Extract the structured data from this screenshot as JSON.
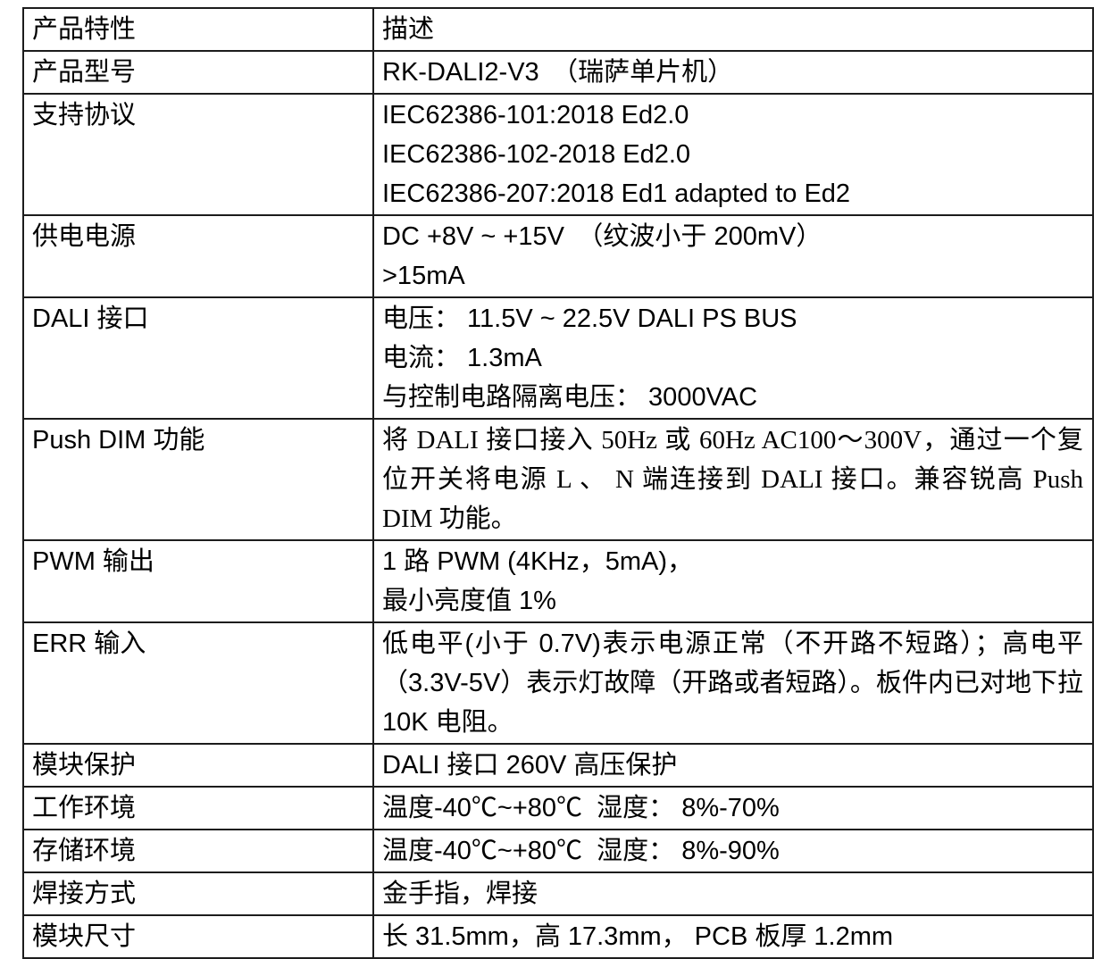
{
  "table": {
    "header": {
      "feature_label": "产品特性",
      "description_label": "描述"
    },
    "rows": [
      {
        "feature": "产品型号",
        "lines": [
          "RK-DALI2-V3　（瑞萨单片机）"
        ]
      },
      {
        "feature": "支持协议",
        "lines": [
          "IEC62386-101:2018 Ed2.0",
          "IEC62386-102-2018 Ed2.0",
          "IEC62386-207:2018 Ed1 adapted to Ed2"
        ]
      },
      {
        "feature": "供电电源",
        "lines": [
          "DC +8V ~ +15V　（纹波小于 200mV）",
          ">15mA"
        ]
      },
      {
        "feature": "DALI 接口",
        "lines": [
          "电压： 11.5V ~ 22.5V DALI PS BUS",
          "电流： 1.3mA",
          "与控制电路隔离电压： 3000VAC"
        ]
      },
      {
        "feature": "Push DIM 功能",
        "serif": true,
        "paragraph": true,
        "lines": [
          "将 DALI 接口接入 50Hz 或 60Hz AC100～300V，通过一个复位开关将电源 L 、 N 端连接到 DALI 接口。兼容锐高 Push DIM 功能。"
        ]
      },
      {
        "feature": "PWM 输出",
        "lines": [
          "1 路 PWM (4KHz，5mA)，",
          "最小亮度值 1%"
        ]
      },
      {
        "feature": "ERR 输入",
        "paragraph": true,
        "lines": [
          "低电平(小于 0.7V)表示电源正常（不开路不短路）；高电平（3.3V-5V）表示灯故障（开路或者短路）。板件内已对地下拉 10K 电阻。"
        ]
      },
      {
        "feature": "模块保护",
        "lines": [
          "DALI 接口 260V 高压保护"
        ]
      },
      {
        "feature": "工作环境",
        "lines": [
          "温度-40℃~+80℃  湿度： 8%-70%"
        ]
      },
      {
        "feature": "存储环境",
        "lines": [
          "温度-40℃~+80℃  湿度： 8%-90%"
        ]
      },
      {
        "feature": "焊接方式",
        "lines": [
          "金手指，焊接"
        ]
      },
      {
        "feature": "模块尺寸",
        "lines": [
          "长 31.5mm，高 17.3mm， PCB 板厚 1.2mm"
        ]
      }
    ]
  }
}
